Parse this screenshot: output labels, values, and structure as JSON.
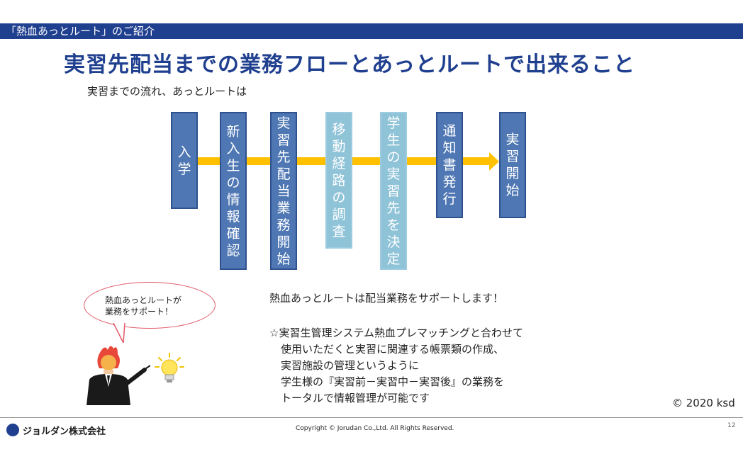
{
  "header": {
    "section_title": "「熱血あっとルート」のご紹介"
  },
  "title": "実習先配当までの業務フローとあっとルートで出来ること",
  "subtitle": "実習までの流れ、あっとルートは",
  "flow": {
    "steps": [
      {
        "label": "入学",
        "style": "dark"
      },
      {
        "label": "新入生の情報確認",
        "style": "dark"
      },
      {
        "label": "実習先配当業務開始",
        "style": "dark"
      },
      {
        "label": "移動経路の調査",
        "style": "light"
      },
      {
        "label": "学生の実習先を決定",
        "style": "light"
      },
      {
        "label": "通知書発行",
        "style": "dark"
      },
      {
        "label": "実習開始",
        "style": "dark"
      }
    ],
    "arrow_color": "#ffc000"
  },
  "bubble": {
    "line1": "熱血あっとルートが",
    "line2": "業務をサポート！"
  },
  "support": {
    "headline": "熱血あっとルートは配当業務をサポートします！",
    "lines": [
      "☆実習生管理システム熱血プレマッチングと合わせて",
      "使用いただくと実習に関連する帳票類の作成、",
      "実習施設の管理というように",
      "学生様の『実習前－実習中－実習後』の業務を",
      "トータルで情報管理が可能です"
    ]
  },
  "copyright_right": "© 2020 ksd",
  "footer": {
    "company": "ジョルダン株式会社",
    "copyright": "Copyright © Jorudan Co.,Ltd. All Rights Reserved.",
    "page_number": "12"
  },
  "colors": {
    "header_bar": "#1f3f8f",
    "title": "#1f3f8f",
    "step_dark": "#4e77b3",
    "step_light": "#8fc3d8"
  }
}
